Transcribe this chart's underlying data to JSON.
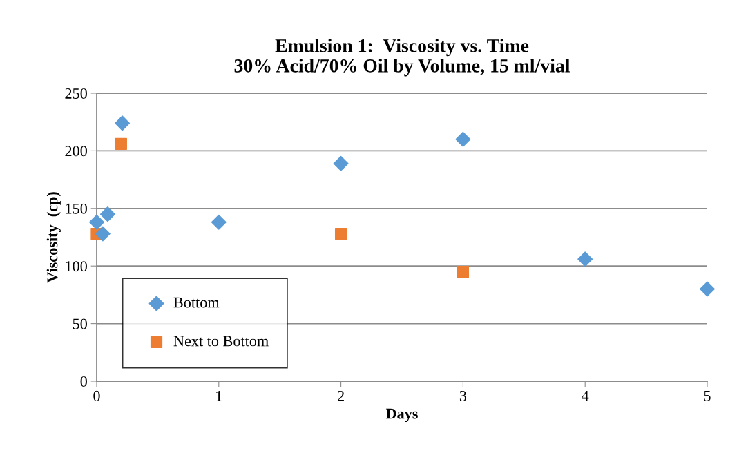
{
  "chart_data": {
    "type": "scatter",
    "title": "Emulsion 1:  Viscosity vs. Time\n30% Acid/70% Oil by Volume, 15 ml/vial",
    "xlabel": "Days",
    "ylabel": "Viscosity  (cp)",
    "series": [
      {
        "name": "Bottom",
        "color": "#5b9bd5",
        "marker": "diamond",
        "x": [
          0,
          0.05,
          0.09,
          0.21,
          1,
          2,
          3,
          4,
          5
        ],
        "values": [
          138,
          128,
          145,
          224,
          138,
          189,
          210,
          106,
          80
        ]
      },
      {
        "name": "Next to Bottom",
        "color": "#ed7d31",
        "marker": "square",
        "x": [
          0,
          0.2,
          2,
          3
        ],
        "values": [
          128,
          206,
          128,
          95
        ]
      }
    ],
    "xlim": [
      0,
      5
    ],
    "xticks": [
      0,
      1,
      2,
      3,
      4,
      5
    ],
    "ylim": [
      0,
      250
    ],
    "yticks": [
      0,
      50,
      100,
      150,
      200,
      250
    ],
    "grid": "y",
    "legend": "bottom left"
  }
}
